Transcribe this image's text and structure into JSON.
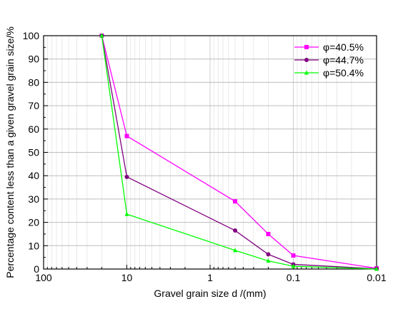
{
  "chart_data": {
    "type": "line",
    "xlabel": "Gravel grain size d /(mm)",
    "ylabel": "Percentage content less than a given gravel grain size/%",
    "x_scale": "log",
    "x_reversed": true,
    "xlim": [
      100,
      0.01
    ],
    "ylim": [
      0,
      100
    ],
    "x_ticks": [
      100,
      10,
      1,
      0.1,
      0.01
    ],
    "x_tick_labels": [
      "100",
      "10",
      "1",
      "0.1",
      "0.01"
    ],
    "y_ticks": [
      0,
      10,
      20,
      30,
      40,
      50,
      60,
      70,
      80,
      90,
      100
    ],
    "y_tick_labels": [
      "0",
      "10",
      "20",
      "30",
      "40",
      "50",
      "60",
      "70",
      "80",
      "90",
      "100"
    ],
    "grid": true,
    "legend_position": "top-right",
    "series": [
      {
        "name": "φ=40.5%",
        "color": "#ff00ff",
        "marker": "square",
        "x": [
          20,
          10,
          0.5,
          0.2,
          0.1,
          0.01
        ],
        "y": [
          100,
          57,
          29,
          15,
          5.8,
          0.3
        ]
      },
      {
        "name": "φ=44.7%",
        "color": "#800080",
        "marker": "circle",
        "x": [
          20,
          10,
          0.5,
          0.2,
          0.1,
          0.01
        ],
        "y": [
          100,
          39.5,
          16.5,
          6.3,
          2,
          0.1
        ]
      },
      {
        "name": "φ=50.4%",
        "color": "#00ff00",
        "marker": "triangle",
        "x": [
          20,
          10,
          0.5,
          0.2,
          0.1,
          0.01
        ],
        "y": [
          100,
          23.5,
          8,
          3.5,
          1.2,
          0
        ]
      }
    ]
  }
}
